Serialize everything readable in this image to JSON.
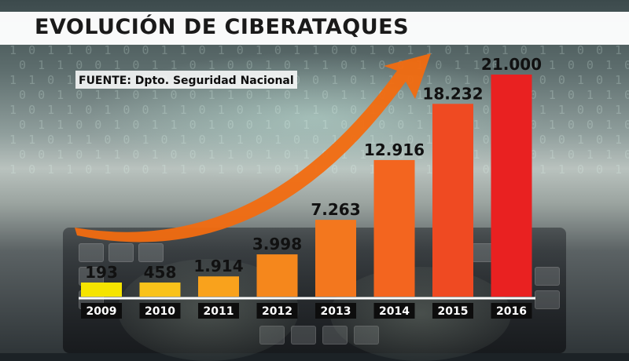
{
  "title": "EVOLUCIÓN DE CIBERATAQUES",
  "source": "FUENTE: Dpto. Seguridad Nacional",
  "chart_data": {
    "type": "bar",
    "title": "EVOLUCIÓN DE CIBERATAQUES",
    "categories": [
      "2009",
      "2010",
      "2011",
      "2012",
      "2013",
      "2014",
      "2015",
      "2016"
    ],
    "values": [
      193,
      458,
      1914,
      3998,
      7263,
      12916,
      18232,
      21000
    ],
    "value_labels": [
      "193",
      "458",
      "1.914",
      "3.998",
      "7.263",
      "12.916",
      "18.232",
      "21.000"
    ],
    "colors": [
      "#f5e400",
      "#f9c21a",
      "#f9a21c",
      "#f5871c",
      "#f3771e",
      "#f3651f",
      "#ef4a22",
      "#e92121"
    ],
    "ylim": [
      0,
      21000
    ],
    "arrow_color": "#f26b10"
  }
}
